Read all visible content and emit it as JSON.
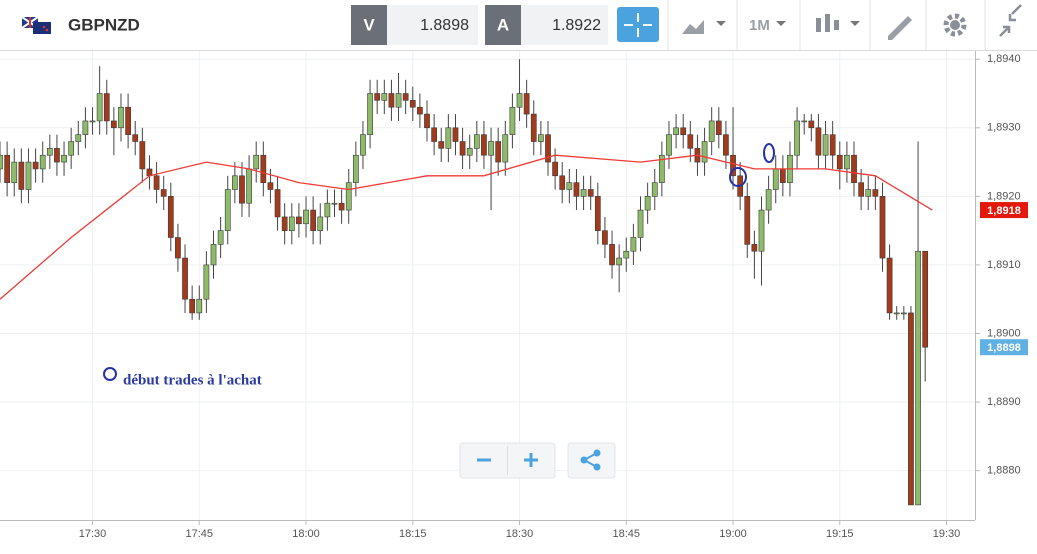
{
  "toolbar": {
    "symbol": "GBPNZD",
    "sell_label": "V",
    "sell_price": 1.8898,
    "buy_label": "A",
    "buy_price": 1.8922,
    "timeframe": "1M"
  },
  "chart_data": {
    "type": "candlestick",
    "x": [
      "17:17",
      "17:18",
      "17:19",
      "17:20",
      "17:21",
      "17:22",
      "17:23",
      "17:24",
      "17:25",
      "17:26",
      "17:27",
      "17:28",
      "17:29",
      "17:30",
      "17:31",
      "17:32",
      "17:33",
      "17:34",
      "17:35",
      "17:36",
      "17:37",
      "17:38",
      "17:39",
      "17:40",
      "17:41",
      "17:42",
      "17:43",
      "17:44",
      "17:45",
      "17:46",
      "17:47",
      "17:48",
      "17:49",
      "17:50",
      "17:51",
      "17:52",
      "17:53",
      "17:54",
      "17:55",
      "17:56",
      "17:57",
      "17:58",
      "17:59",
      "18:00",
      "18:01",
      "18:02",
      "18:03",
      "18:04",
      "18:05",
      "18:06",
      "18:07",
      "18:08",
      "18:09",
      "18:10",
      "18:11",
      "18:12",
      "18:13",
      "18:14",
      "18:15",
      "18:16",
      "18:17",
      "18:18",
      "18:19",
      "18:20",
      "18:21",
      "18:22",
      "18:23",
      "18:24",
      "18:25",
      "18:26",
      "18:27",
      "18:28",
      "18:29",
      "18:30",
      "18:31",
      "18:32",
      "18:33",
      "18:34",
      "18:35",
      "18:36",
      "18:37",
      "18:38",
      "18:39",
      "18:40",
      "18:41",
      "18:42",
      "18:43",
      "18:44",
      "18:45",
      "18:46",
      "18:47",
      "18:48",
      "18:49",
      "18:50",
      "18:51",
      "18:52",
      "18:53",
      "18:54",
      "18:55",
      "18:56",
      "18:57",
      "18:58",
      "18:59",
      "19:00",
      "19:01",
      "19:02",
      "19:03",
      "19:04",
      "19:05",
      "19:06",
      "19:07",
      "19:08",
      "19:09",
      "19:10",
      "19:11",
      "19:12",
      "19:13",
      "19:14",
      "19:15",
      "19:16",
      "19:17",
      "19:18",
      "19:19",
      "19:20",
      "19:21",
      "19:22",
      "19:23",
      "19:24",
      "19:25",
      "19:26",
      "19:27"
    ],
    "open": [
      1.8924,
      1.8926,
      1.8922,
      1.8925,
      1.8921,
      1.8925,
      1.8924,
      1.8926,
      1.8927,
      1.8925,
      1.8926,
      1.8928,
      1.8929,
      1.8931,
      1.8931,
      1.8935,
      1.8931,
      1.893,
      1.8933,
      1.8929,
      1.8928,
      1.8924,
      1.8923,
      1.8921,
      1.892,
      1.8914,
      1.8911,
      1.8905,
      1.8903,
      1.8905,
      1.891,
      1.8913,
      1.8915,
      1.8921,
      1.8923,
      1.8919,
      1.8924,
      1.8926,
      1.8922,
      1.8921,
      1.8917,
      1.8915,
      1.8917,
      1.8916,
      1.8918,
      1.8915,
      1.8917,
      1.8919,
      1.8919,
      1.8918,
      1.8922,
      1.8926,
      1.8929,
      1.8935,
      1.8934,
      1.8935,
      1.8933,
      1.8935,
      1.8934,
      1.8933,
      1.8932,
      1.893,
      1.8928,
      1.8927,
      1.893,
      1.8928,
      1.8926,
      1.8927,
      1.8929,
      1.8926,
      1.8928,
      1.8925,
      1.8929,
      1.8933,
      1.8935,
      1.8932,
      1.8928,
      1.8929,
      1.8925,
      1.8923,
      1.8921,
      1.8922,
      1.892,
      1.8921,
      1.892,
      1.8915,
      1.8913,
      1.891,
      1.8911,
      1.8912,
      1.8914,
      1.8918,
      1.892,
      1.8922,
      1.8926,
      1.8929,
      1.893,
      1.8929,
      1.8927,
      1.8925,
      1.8928,
      1.8931,
      1.8929,
      1.8926,
      1.8923,
      1.892,
      1.8913,
      1.8912,
      1.8918,
      1.8921,
      1.8924,
      1.8922,
      1.8926,
      1.8931,
      1.8931,
      1.893,
      1.8926,
      1.8929,
      1.8926,
      1.8924,
      1.8926,
      1.8922,
      1.892,
      1.8921,
      1.892,
      1.8911,
      1.8903,
      1.8903,
      1.8903,
      1.8875,
      1.8912
    ],
    "high": [
      1.8928,
      1.8928,
      1.8927,
      1.8927,
      1.8927,
      1.8927,
      1.8928,
      1.8929,
      1.8929,
      1.8928,
      1.893,
      1.8931,
      1.8933,
      1.8933,
      1.8939,
      1.8937,
      1.8933,
      1.8935,
      1.8935,
      1.8931,
      1.893,
      1.8926,
      1.8925,
      1.8923,
      1.8922,
      1.8916,
      1.8913,
      1.8907,
      1.8907,
      1.8912,
      1.8915,
      1.8917,
      1.8923,
      1.8925,
      1.8925,
      1.8926,
      1.8928,
      1.8928,
      1.8924,
      1.8923,
      1.8919,
      1.8919,
      1.8919,
      1.892,
      1.892,
      1.8919,
      1.8921,
      1.8921,
      1.8921,
      1.8924,
      1.8928,
      1.8931,
      1.8937,
      1.8937,
      1.8937,
      1.8937,
      1.8938,
      1.8937,
      1.8936,
      1.8935,
      1.8934,
      1.8932,
      1.893,
      1.8932,
      1.8932,
      1.893,
      1.8929,
      1.8931,
      1.8931,
      1.893,
      1.893,
      1.8931,
      1.8935,
      1.894,
      1.8937,
      1.8934,
      1.8931,
      1.8931,
      1.8927,
      1.8925,
      1.8924,
      1.8924,
      1.8923,
      1.8923,
      1.8922,
      1.8917,
      1.8915,
      1.8913,
      1.8914,
      1.8916,
      1.892,
      1.8922,
      1.8924,
      1.8928,
      1.8931,
      1.8932,
      1.8932,
      1.8931,
      1.8929,
      1.893,
      1.8933,
      1.8933,
      1.8931,
      1.8933,
      1.8925,
      1.8922,
      1.8915,
      1.892,
      1.8923,
      1.8926,
      1.8926,
      1.8928,
      1.8933,
      1.8932,
      1.8932,
      1.8932,
      1.8931,
      1.8931,
      1.8928,
      1.8928,
      1.8928,
      1.8924,
      1.8923,
      1.8923,
      1.8922,
      1.8913,
      1.8904,
      1.8904,
      1.8904,
      1.8928,
      1.8912
    ],
    "low": [
      1.8922,
      1.892,
      1.892,
      1.8919,
      1.8919,
      1.8922,
      1.8922,
      1.8924,
      1.8923,
      1.8923,
      1.8924,
      1.8926,
      1.8927,
      1.8929,
      1.8929,
      1.8929,
      1.8926,
      1.8928,
      1.8927,
      1.8926,
      1.8922,
      1.8921,
      1.8919,
      1.8918,
      1.8912,
      1.8909,
      1.8903,
      1.8902,
      1.8902,
      1.8903,
      1.8908,
      1.8911,
      1.8913,
      1.8919,
      1.8917,
      1.8917,
      1.8922,
      1.892,
      1.8919,
      1.8915,
      1.8913,
      1.8913,
      1.8914,
      1.8914,
      1.8913,
      1.8913,
      1.8915,
      1.8917,
      1.8916,
      1.8916,
      1.892,
      1.8924,
      1.8927,
      1.8932,
      1.8932,
      1.8931,
      1.8931,
      1.8932,
      1.8931,
      1.893,
      1.8928,
      1.8926,
      1.8925,
      1.8925,
      1.8926,
      1.8924,
      1.8924,
      1.8925,
      1.8924,
      1.8918,
      1.8923,
      1.8923,
      1.8927,
      1.8931,
      1.893,
      1.8926,
      1.8926,
      1.8923,
      1.8921,
      1.8919,
      1.8919,
      1.8918,
      1.8918,
      1.8918,
      1.8913,
      1.8911,
      1.8908,
      1.8906,
      1.8909,
      1.891,
      1.8912,
      1.8916,
      1.8918,
      1.892,
      1.8924,
      1.8927,
      1.8927,
      1.8925,
      1.8923,
      1.8923,
      1.8926,
      1.8927,
      1.8924,
      1.8921,
      1.8918,
      1.8911,
      1.8908,
      1.8907,
      1.8916,
      1.8919,
      1.892,
      1.892,
      1.8924,
      1.8929,
      1.8928,
      1.8924,
      1.8924,
      1.8924,
      1.8921,
      1.8922,
      1.892,
      1.8918,
      1.8918,
      1.8918,
      1.8909,
      1.8902,
      1.8902,
      1.8902,
      1.8875,
      1.8875,
      1.8893
    ],
    "close": [
      1.8926,
      1.8922,
      1.8925,
      1.8921,
      1.8925,
      1.8924,
      1.8926,
      1.8927,
      1.8925,
      1.8926,
      1.8928,
      1.8929,
      1.8931,
      1.8931,
      1.8935,
      1.8931,
      1.893,
      1.8933,
      1.8929,
      1.8928,
      1.8924,
      1.8923,
      1.8921,
      1.892,
      1.8914,
      1.8911,
      1.8905,
      1.8903,
      1.8905,
      1.891,
      1.8913,
      1.8915,
      1.8921,
      1.8923,
      1.8919,
      1.8924,
      1.8926,
      1.8922,
      1.8921,
      1.8917,
      1.8915,
      1.8917,
      1.8916,
      1.8918,
      1.8915,
      1.8917,
      1.8919,
      1.8919,
      1.8918,
      1.8922,
      1.8926,
      1.8929,
      1.8935,
      1.8934,
      1.8935,
      1.8933,
      1.8935,
      1.8934,
      1.8933,
      1.8932,
      1.893,
      1.8928,
      1.8927,
      1.893,
      1.8928,
      1.8926,
      1.8927,
      1.8929,
      1.8926,
      1.8928,
      1.8925,
      1.8929,
      1.8933,
      1.8935,
      1.8932,
      1.8928,
      1.8929,
      1.8925,
      1.8923,
      1.8921,
      1.8922,
      1.892,
      1.8921,
      1.892,
      1.8915,
      1.8913,
      1.891,
      1.8911,
      1.8912,
      1.8914,
      1.8918,
      1.892,
      1.8922,
      1.8926,
      1.8929,
      1.893,
      1.8929,
      1.8927,
      1.8925,
      1.8928,
      1.8931,
      1.8929,
      1.8926,
      1.8923,
      1.892,
      1.8913,
      1.8912,
      1.8918,
      1.8921,
      1.8924,
      1.8922,
      1.8926,
      1.8931,
      1.8931,
      1.893,
      1.8926,
      1.8929,
      1.8926,
      1.8924,
      1.8926,
      1.8922,
      1.892,
      1.8921,
      1.892,
      1.8911,
      1.8903,
      1.8903,
      1.8903,
      1.8875,
      1.8912,
      1.8898
    ],
    "up_color": "#8dbb6a",
    "down_color": "#a23a1c",
    "ma": {
      "color": "#ef3b36",
      "x": [
        "17:17",
        "17:27",
        "17:38",
        "17:46",
        "17:52",
        "17:59",
        "18:06",
        "18:17",
        "18:25",
        "18:35",
        "18:47",
        "18:55",
        "19:03",
        "19:13",
        "19:20",
        "19:28"
      ],
      "values": [
        1.8905,
        1.8914,
        1.8923,
        1.8925,
        1.8924,
        1.8922,
        1.8921,
        1.8923,
        1.8923,
        1.8926,
        1.8925,
        1.8926,
        1.8924,
        1.8924,
        1.8923,
        1.8918
      ]
    },
    "xlim": [
      "17:17",
      "19:34"
    ],
    "xticks": [
      "17:30",
      "17:45",
      "18:00",
      "18:15",
      "18:30",
      "18:45",
      "19:00",
      "19:15",
      "19:30"
    ],
    "ylim": [
      1.88728,
      1.89412
    ],
    "yticks": [
      {
        "value": 1.888,
        "label": "1,8880"
      },
      {
        "value": 1.889,
        "label": "1,8890"
      },
      {
        "value": 1.89,
        "label": "1,8900"
      },
      {
        "value": 1.891,
        "label": "1,8910"
      },
      {
        "value": 1.892,
        "label": "1,8920"
      },
      {
        "value": 1.893,
        "label": "1,8930"
      },
      {
        "value": 1.894,
        "label": "1,8940"
      }
    ],
    "grid": true,
    "price_tags": [
      {
        "value": 1.8918,
        "label": "1,8918",
        "color": "#e3170a"
      },
      {
        "value": 1.8898,
        "label": "1,8898",
        "color": "#5fb0e3"
      }
    ],
    "annotation": "début trades à l'achat"
  }
}
